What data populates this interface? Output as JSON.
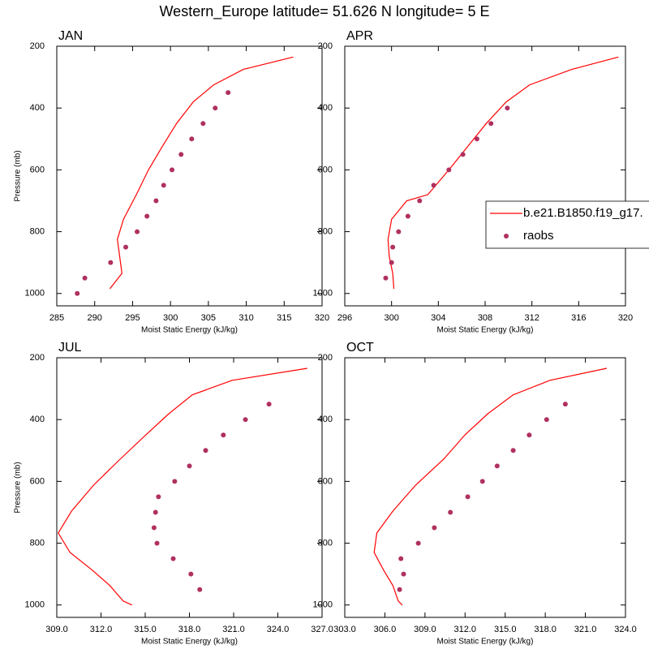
{
  "title": "Western_Europe  latitude= 51.626 N longitude= 5 E",
  "chart_data": [
    {
      "type": "line",
      "title": "JAN",
      "xlabel": "Moist Static Energy (kJ/kg)",
      "ylabel": "Pressure (mb)",
      "xlim": [
        285,
        320
      ],
      "ylim": [
        1040,
        200
      ],
      "xticks": [
        285,
        290,
        295,
        300,
        305,
        310,
        315,
        320
      ],
      "yticks": [
        200,
        400,
        600,
        800,
        1000
      ],
      "series": [
        {
          "color": "#ff0000",
          "x": [
            316.2,
            309.6,
            305.7,
            303.0,
            300.8,
            298.9,
            297.1,
            295.5,
            293.8,
            293.0,
            293.3,
            293.6,
            292.0
          ],
          "y": [
            235,
            275,
            325,
            380,
            450,
            525,
            600,
            680,
            760,
            825,
            880,
            935,
            985
          ]
        },
        {
          "color": "#b03060",
          "marker": "dot",
          "x": [
            307.6,
            305.9,
            304.3,
            302.8,
            301.4,
            300.2,
            299.1,
            298.1,
            296.9,
            295.6,
            294.1,
            292.1,
            288.7,
            287.7
          ],
          "y": [
            350,
            400,
            450,
            500,
            550,
            600,
            650,
            700,
            750,
            800,
            850,
            900,
            950,
            1000
          ]
        }
      ]
    },
    {
      "type": "line",
      "title": "APR",
      "xlabel": "Moist Static Energy (kJ/kg)",
      "xlim": [
        296,
        320
      ],
      "ylim": [
        1040,
        200
      ],
      "xticks": [
        296,
        300,
        304,
        308,
        312,
        316,
        320
      ],
      "yticks": [
        200,
        400,
        600,
        800,
        1000
      ],
      "legend": "right",
      "series": [
        {
          "name": "b.e21.B1850.f19_g17.",
          "color": "#ff0000",
          "x": [
            319.4,
            315.4,
            311.8,
            309.8,
            308.1,
            306.5,
            304.9,
            303.1,
            301.3,
            300.0,
            299.7,
            299.8,
            300.1,
            300.2
          ],
          "y": [
            235,
            275,
            325,
            380,
            450,
            525,
            600,
            680,
            700,
            760,
            825,
            880,
            935,
            985
          ]
        },
        {
          "name": "raobs",
          "color": "#b03060",
          "marker": "dot",
          "x": [
            309.9,
            308.5,
            307.3,
            306.1,
            304.9,
            303.6,
            302.4,
            301.4,
            300.6,
            300.1,
            300.0,
            299.5
          ],
          "y": [
            400,
            450,
            500,
            550,
            600,
            650,
            700,
            750,
            800,
            850,
            900,
            950
          ]
        }
      ]
    },
    {
      "type": "line",
      "title": "JUL",
      "xlabel": "Moist Static Energy (kJ/kg)",
      "ylabel": "Pressure (mb)",
      "xlim": [
        309,
        327
      ],
      "ylim": [
        1040,
        200
      ],
      "xticks": [
        {
          "value": 309,
          "label": "309.0"
        },
        {
          "value": 312,
          "label": "312.0"
        },
        {
          "value": 315,
          "label": "315.0"
        },
        {
          "value": 318,
          "label": "318.0"
        },
        {
          "value": 321,
          "label": "321.0"
        },
        {
          "value": 324,
          "label": "324.0"
        },
        {
          "value": 327,
          "label": "327.0"
        }
      ],
      "yticks": [
        200,
        400,
        600,
        800,
        1000
      ],
      "series": [
        {
          "color": "#ff0000",
          "x": [
            326.0,
            320.9,
            318.2,
            316.6,
            315.05,
            313.3,
            311.5,
            310.0,
            309.1,
            309.9,
            311.4,
            312.6,
            313.5,
            314.1
          ],
          "y": [
            234,
            273,
            320,
            381,
            449,
            528,
            612,
            696,
            767,
            830,
            887,
            937,
            987,
            1000
          ]
        },
        {
          "color": "#b03060",
          "marker": "dot",
          "x": [
            323.4,
            321.8,
            320.3,
            319.1,
            318.0,
            317.0,
            315.9,
            315.7,
            315.6,
            315.8,
            316.9,
            318.1,
            318.7
          ],
          "y": [
            350,
            400,
            450,
            500,
            550,
            600,
            650,
            700,
            750,
            800,
            850,
            900,
            950
          ]
        }
      ]
    },
    {
      "type": "line",
      "title": "OCT",
      "xlabel": "Moist Static Energy (kJ/kg)",
      "xlim": [
        303,
        324
      ],
      "ylim": [
        1040,
        200
      ],
      "xticks": [
        {
          "value": 303,
          "label": "303.0"
        },
        {
          "value": 306,
          "label": "306.0"
        },
        {
          "value": 309,
          "label": "309.0"
        },
        {
          "value": 312,
          "label": "312.0"
        },
        {
          "value": 315,
          "label": "315.0"
        },
        {
          "value": 318,
          "label": "318.0"
        },
        {
          "value": 321,
          "label": "321.0"
        },
        {
          "value": 324,
          "label": "324.0"
        }
      ],
      "yticks": [
        200,
        400,
        600,
        800,
        1000
      ],
      "series": [
        {
          "color": "#ff0000",
          "x": [
            322.6,
            318.35,
            315.6,
            313.7,
            312.0,
            310.4,
            308.3,
            306.6,
            305.4,
            305.2,
            305.9,
            306.6,
            307.0,
            307.3
          ],
          "y": [
            234,
            273,
            320,
            381,
            449,
            528,
            612,
            696,
            767,
            830,
            887,
            937,
            987,
            1000
          ]
        },
        {
          "color": "#b03060",
          "marker": "dot",
          "x": [
            319.5,
            318.1,
            316.8,
            315.6,
            314.4,
            313.3,
            312.2,
            310.9,
            309.7,
            308.5,
            307.2,
            307.4,
            307.1
          ],
          "y": [
            350,
            400,
            450,
            500,
            550,
            600,
            650,
            700,
            750,
            800,
            850,
            900,
            950
          ]
        }
      ]
    }
  ]
}
